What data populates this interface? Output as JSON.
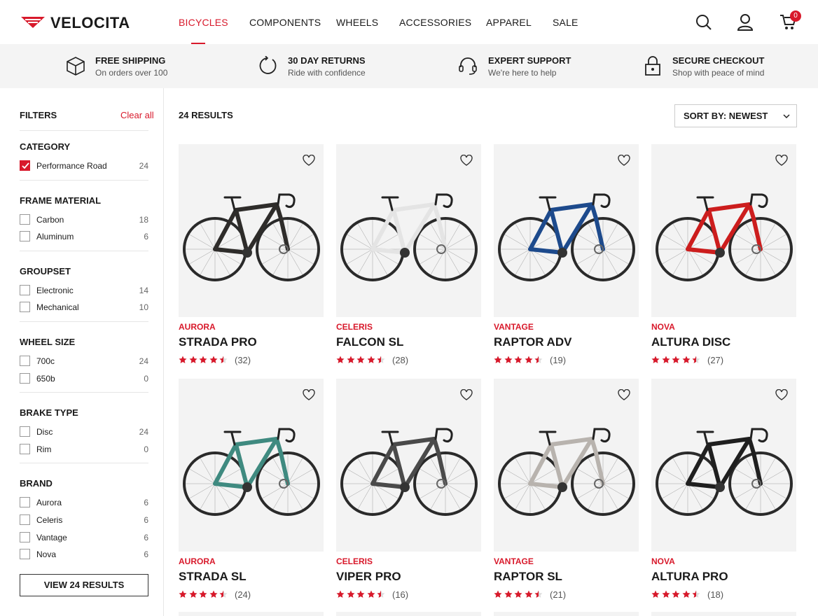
{
  "header": {
    "logo": "VELOCITA",
    "nav": [
      "BICYCLES",
      "COMPONENTS",
      "WHEELS",
      "ACCESSORIES",
      "APPAREL",
      "SALE"
    ],
    "active_nav": 0,
    "cart_count": 0
  },
  "benefits": [
    {
      "title": "FREE SHIPPING",
      "subtitle": "On orders over 100"
    },
    {
      "title": "30 DAY RETURNS",
      "subtitle": "Ride with confidence"
    },
    {
      "title": "EXPERT SUPPORT",
      "subtitle": "We're here to help"
    },
    {
      "title": "SECURE CHECKOUT",
      "subtitle": "Shop with peace of mind"
    }
  ],
  "filters": {
    "title": "FILTERS",
    "clear": "Clear all",
    "groups": [
      {
        "name": "CATEGORY",
        "options": [
          {
            "label": "Performance Road",
            "count": 24,
            "checked": true
          }
        ]
      },
      {
        "name": "FRAME MATERIAL",
        "options": [
          {
            "label": "Carbon",
            "count": 18,
            "checked": false
          },
          {
            "label": "Aluminum",
            "count": 6,
            "checked": false
          }
        ]
      },
      {
        "name": "GROUPSET",
        "options": [
          {
            "label": "Electronic",
            "count": 14,
            "checked": false
          },
          {
            "label": "Mechanical",
            "count": 10,
            "checked": false
          }
        ]
      },
      {
        "name": "WHEEL SIZE",
        "options": [
          {
            "label": "700c",
            "count": 24,
            "checked": false
          },
          {
            "label": "650b",
            "count": 0,
            "checked": false
          }
        ]
      },
      {
        "name": "BRAKE TYPE",
        "options": [
          {
            "label": "Disc",
            "count": 24,
            "checked": false
          },
          {
            "label": "Rim",
            "count": 0,
            "checked": false
          }
        ]
      },
      {
        "name": "BRAND",
        "options": [
          {
            "label": "Aurora",
            "count": 6,
            "checked": false
          },
          {
            "label": "Celeris",
            "count": 6,
            "checked": false
          },
          {
            "label": "Vantage",
            "count": 6,
            "checked": false
          },
          {
            "label": "Nova",
            "count": 6,
            "checked": false
          }
        ]
      }
    ],
    "button": "VIEW 24 RESULTS"
  },
  "results": {
    "count_label": "24 RESULTS",
    "sort": "SORT BY: NEWEST",
    "products": [
      {
        "brand": "AURORA",
        "name": "STRADA PRO",
        "rating": 4.5,
        "reviews": "(32)",
        "frame_color": "#2e2c2a"
      },
      {
        "brand": "CELERIS",
        "name": "FALCON SL",
        "rating": 4.5,
        "reviews": "(28)",
        "frame_color": "#e4e4e4"
      },
      {
        "brand": "VANTAGE",
        "name": "RAPTOR ADV",
        "rating": 4.5,
        "reviews": "(19)",
        "frame_color": "#1d4a8c"
      },
      {
        "brand": "NOVA",
        "name": "ALTURA DISC",
        "rating": 4.5,
        "reviews": "(27)",
        "frame_color": "#cc1d1d"
      },
      {
        "brand": "AURORA",
        "name": "STRADA SL",
        "rating": 4.5,
        "reviews": "(24)",
        "frame_color": "#3f8a80"
      },
      {
        "brand": "CELERIS",
        "name": "VIPER PRO",
        "rating": 4.5,
        "reviews": "(16)",
        "frame_color": "#4a4a4a"
      },
      {
        "brand": "VANTAGE",
        "name": "RAPTOR SL",
        "rating": 4.5,
        "reviews": "(21)",
        "frame_color": "#b8b3ae"
      },
      {
        "brand": "NOVA",
        "name": "ALTURA PRO",
        "rating": 4.5,
        "reviews": "(18)",
        "frame_color": "#1f1f1f"
      }
    ]
  }
}
